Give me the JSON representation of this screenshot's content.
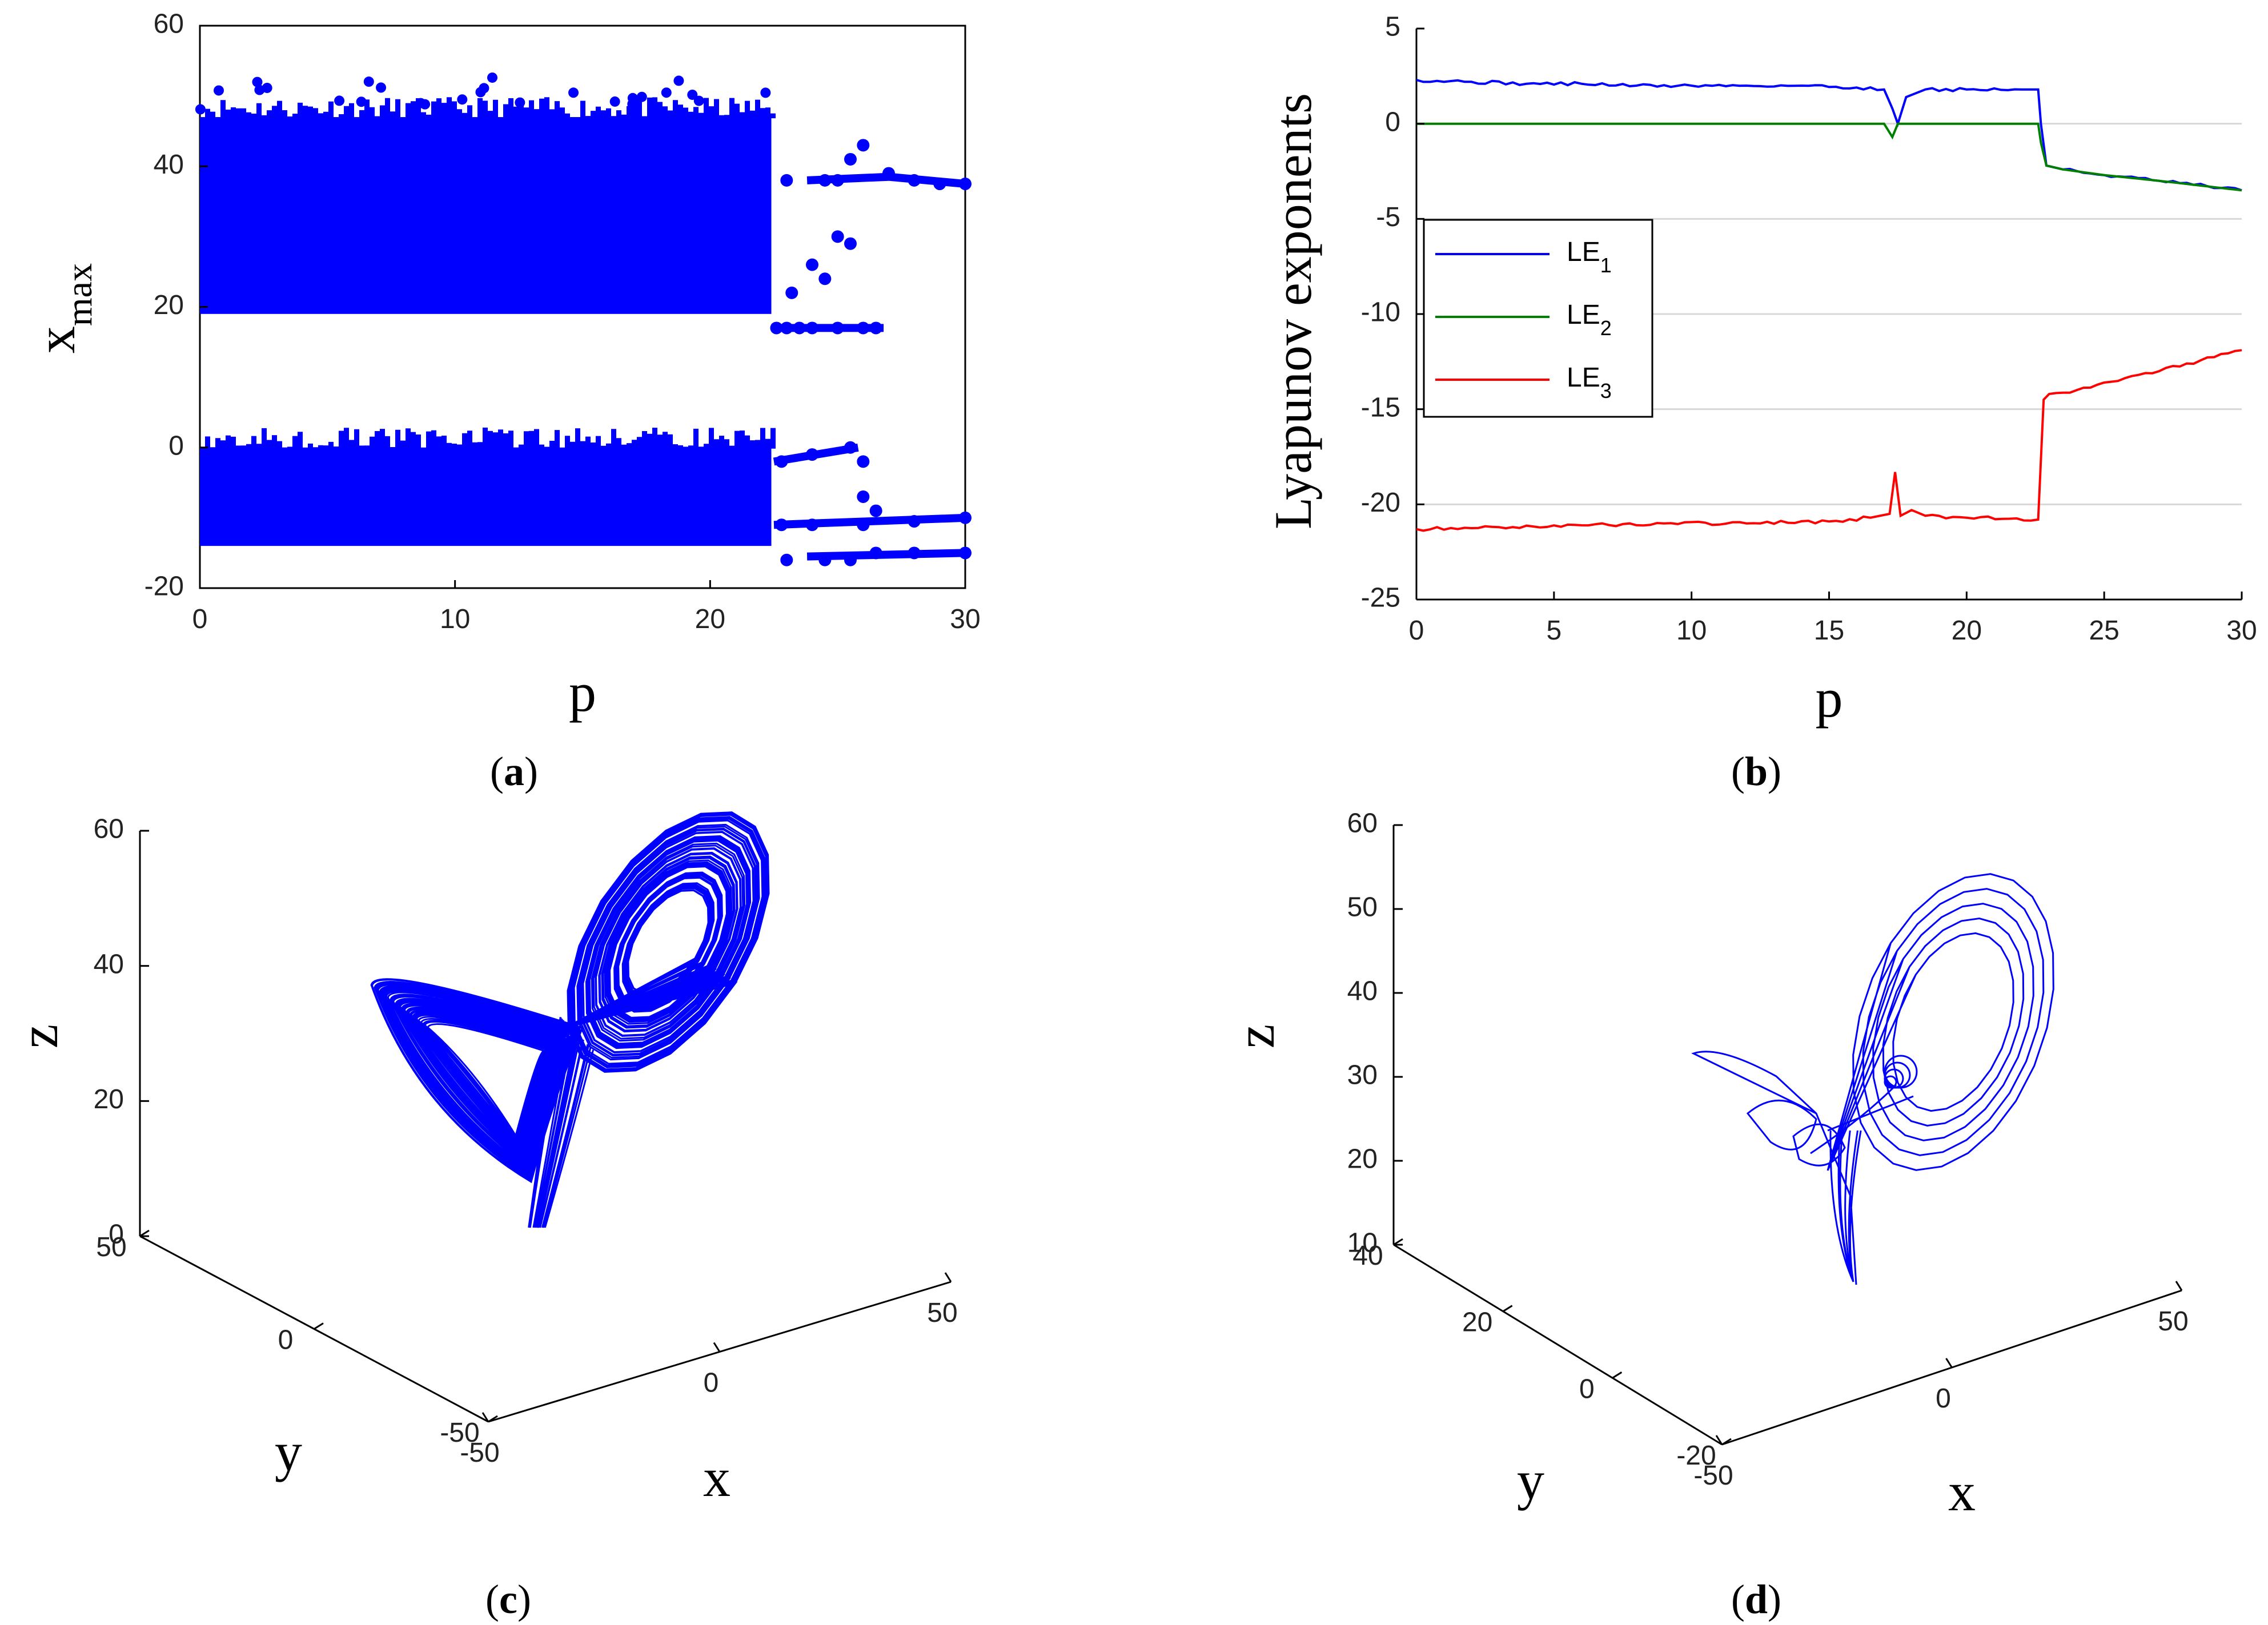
{
  "chart_data": [
    {
      "id": "a",
      "type": "scatter",
      "panel_label": "a",
      "title": "",
      "xlabel": "p",
      "ylabel": "x",
      "ylabel_sub": "max",
      "xlim": [
        0,
        30
      ],
      "ylim": [
        -20,
        60
      ],
      "xticks": [
        0,
        10,
        20,
        30
      ],
      "yticks": [
        -20,
        0,
        20,
        40,
        60
      ],
      "grid": false,
      "color": "#0000ff",
      "bands": [
        {
          "name": "upper chaotic band",
          "x_range": [
            0,
            22.4
          ],
          "y_low": 19,
          "y_high": 47,
          "y_top_outliers": [
            48,
            53
          ]
        },
        {
          "name": "lower chaotic band",
          "x_range": [
            0,
            22.4
          ],
          "y_low": -14,
          "y_high": 0
        }
      ],
      "post_transition_points": [
        {
          "x": 22.6,
          "y": 17
        },
        {
          "x": 23,
          "y": 17
        },
        {
          "x": 23.5,
          "y": 17
        },
        {
          "x": 24,
          "y": 17
        },
        {
          "x": 25,
          "y": 17
        },
        {
          "x": 26,
          "y": 17
        },
        {
          "x": 26.5,
          "y": 17
        },
        {
          "x": 23,
          "y": 38
        },
        {
          "x": 24.5,
          "y": 38
        },
        {
          "x": 25,
          "y": 38
        },
        {
          "x": 25.5,
          "y": 41
        },
        {
          "x": 26,
          "y": 43
        },
        {
          "x": 27,
          "y": 39
        },
        {
          "x": 28,
          "y": 38
        },
        {
          "x": 29,
          "y": 37.5
        },
        {
          "x": 30,
          "y": 37.5
        },
        {
          "x": 24,
          "y": 26
        },
        {
          "x": 25,
          "y": 30
        },
        {
          "x": 25.5,
          "y": 29
        },
        {
          "x": 23.2,
          "y": 22
        },
        {
          "x": 24.5,
          "y": 24
        },
        {
          "x": 22.8,
          "y": -2
        },
        {
          "x": 24,
          "y": -1
        },
        {
          "x": 25.5,
          "y": 0
        },
        {
          "x": 26,
          "y": -2
        },
        {
          "x": 22.8,
          "y": -11
        },
        {
          "x": 24,
          "y": -11
        },
        {
          "x": 26,
          "y": -11
        },
        {
          "x": 28,
          "y": -10.5
        },
        {
          "x": 30,
          "y": -10
        },
        {
          "x": 23,
          "y": -16
        },
        {
          "x": 24.5,
          "y": -16
        },
        {
          "x": 25.5,
          "y": -16
        },
        {
          "x": 26.5,
          "y": -15
        },
        {
          "x": 28,
          "y": -15
        },
        {
          "x": 30,
          "y": -15
        },
        {
          "x": 26,
          "y": -7
        },
        {
          "x": 26.5,
          "y": -9
        }
      ]
    },
    {
      "id": "b",
      "type": "line",
      "panel_label": "b",
      "title": "",
      "xlabel": "p",
      "ylabel": "Lyapunov exponents",
      "xlim": [
        0,
        30
      ],
      "ylim": [
        -25,
        5
      ],
      "xticks": [
        0,
        5,
        10,
        15,
        20,
        25,
        30
      ],
      "yticks": [
        5,
        0,
        -5,
        -10,
        -15,
        -20,
        -25
      ],
      "grid": true,
      "legend_position": "left",
      "series": [
        {
          "name": "LE",
          "sub": "1",
          "color": "#0000ff",
          "x": [
            0,
            2,
            4,
            6,
            8,
            10,
            12,
            14,
            16,
            17,
            17.3,
            17.5,
            17.8,
            18.5,
            20,
            22,
            22.6,
            22.7,
            22.9,
            23.5,
            25,
            27,
            30
          ],
          "y": [
            2.3,
            2.2,
            2.1,
            2.1,
            2.0,
            2.0,
            2.0,
            2.0,
            1.9,
            1.8,
            0.8,
            0,
            1.4,
            1.8,
            1.8,
            1.8,
            1.8,
            0,
            -2.2,
            -2.4,
            -2.7,
            -3.0,
            -3.5
          ]
        },
        {
          "name": "LE",
          "sub": "2",
          "color": "#008000",
          "x": [
            0,
            5,
            10,
            15,
            17,
            17.3,
            17.5,
            17.8,
            20,
            22.6,
            22.7,
            22.9,
            23.5,
            25,
            27,
            30
          ],
          "y": [
            0,
            0,
            0,
            0,
            0,
            -0.7,
            0,
            0,
            0,
            0,
            -1.0,
            -2.2,
            -2.4,
            -2.7,
            -3.0,
            -3.5
          ]
        },
        {
          "name": "LE",
          "sub": "3",
          "color": "#ff0000",
          "x": [
            0,
            3,
            6,
            9,
            12,
            15,
            16.5,
            17.2,
            17.4,
            17.6,
            18,
            18.5,
            20,
            22.6,
            22.8,
            23,
            24,
            25,
            27,
            30
          ],
          "y": [
            -21.3,
            -21.2,
            -21.1,
            -21.0,
            -21.0,
            -20.9,
            -20.7,
            -20.5,
            -18.3,
            -20.6,
            -20.3,
            -20.6,
            -20.7,
            -20.8,
            -14.5,
            -14.2,
            -14.0,
            -13.6,
            -13.0,
            -11.9
          ]
        }
      ]
    },
    {
      "id": "c",
      "type": "line",
      "subtype": "3d-trajectory",
      "panel_label": "c",
      "xlabel": "x",
      "ylabel": "y",
      "zlabel": "z",
      "xlim": [
        -50,
        50
      ],
      "ylim": [
        -50,
        50
      ],
      "zlim": [
        0,
        60
      ],
      "xticks": [
        -50,
        0,
        50
      ],
      "yticks": [
        -50,
        0,
        50
      ],
      "zticks": [
        0,
        20,
        40,
        60
      ],
      "color": "#0000ff",
      "grid": false
    },
    {
      "id": "d",
      "type": "line",
      "subtype": "3d-trajectory",
      "panel_label": "d",
      "xlabel": "x",
      "ylabel": "y",
      "zlabel": "z",
      "xlim": [
        -50,
        50
      ],
      "ylim": [
        -20,
        40
      ],
      "zlim": [
        10,
        60
      ],
      "xticks": [
        -50,
        0,
        50
      ],
      "yticks": [
        -20,
        0,
        20,
        40
      ],
      "zticks": [
        10,
        20,
        30,
        40,
        50,
        60
      ],
      "color": "#0000ff",
      "grid": false
    }
  ]
}
